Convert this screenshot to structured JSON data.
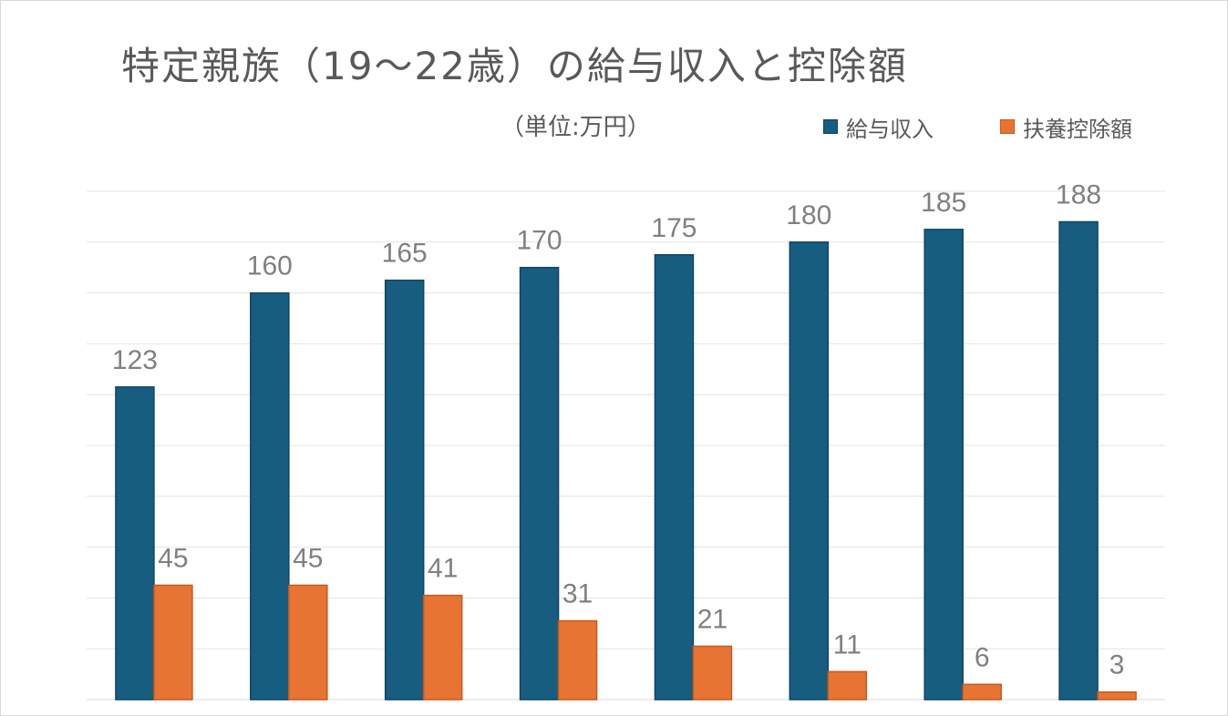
{
  "chart_data": {
    "type": "bar",
    "title": "特定親族（19～22歳）の給与収入と控除額",
    "unit_note": "（単位:万円）",
    "categories": [
      "",
      "",
      "",
      "",
      "",
      "",
      "",
      ""
    ],
    "series": [
      {
        "name": "給与収入",
        "color": "#175d80",
        "values": [
          123,
          160,
          165,
          170,
          175,
          180,
          185,
          188
        ]
      },
      {
        "name": "扶養控除額",
        "color": "#e87433",
        "values": [
          45,
          45,
          41,
          31,
          21,
          11,
          6,
          3
        ]
      }
    ],
    "ylim": [
      0,
      200
    ],
    "grid": true,
    "data_labels": true,
    "legend_position": "top-right",
    "xlabel": "",
    "ylabel": ""
  }
}
